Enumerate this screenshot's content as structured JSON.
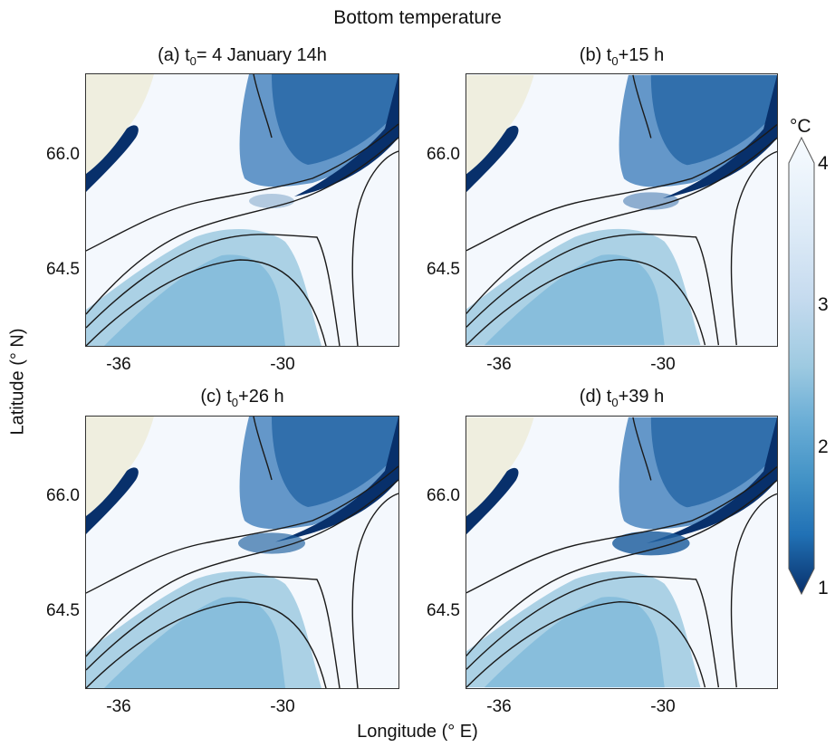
{
  "figure": {
    "title": "Bottom temperature",
    "xlabel": "Longitude (° E)",
    "ylabel": "Latitude (° N)"
  },
  "panels": [
    {
      "label": "(a) t",
      "sub": "0",
      "rest": "= 4 January 14h"
    },
    {
      "label": "(b) t",
      "sub": "0",
      "rest": "+15 h"
    },
    {
      "label": "(c) t",
      "sub": "0",
      "rest": "+26 h"
    },
    {
      "label": "(d) t",
      "sub": "0",
      "rest": "+39 h"
    }
  ],
  "axes": {
    "x_ticks": [
      "-36",
      "-30"
    ],
    "y_ticks": [
      "66.0",
      "64.5"
    ]
  },
  "colorbar": {
    "unit": "°C",
    "ticks": [
      "4",
      "3",
      "2",
      "1"
    ],
    "range": [
      1,
      4
    ],
    "extend": "both",
    "colormap": "Blues_r"
  },
  "colors": {
    "land": "#efeedf",
    "warm": "#f4f8fd",
    "cold": "#08306b",
    "contour": "#1a1a1a"
  }
}
